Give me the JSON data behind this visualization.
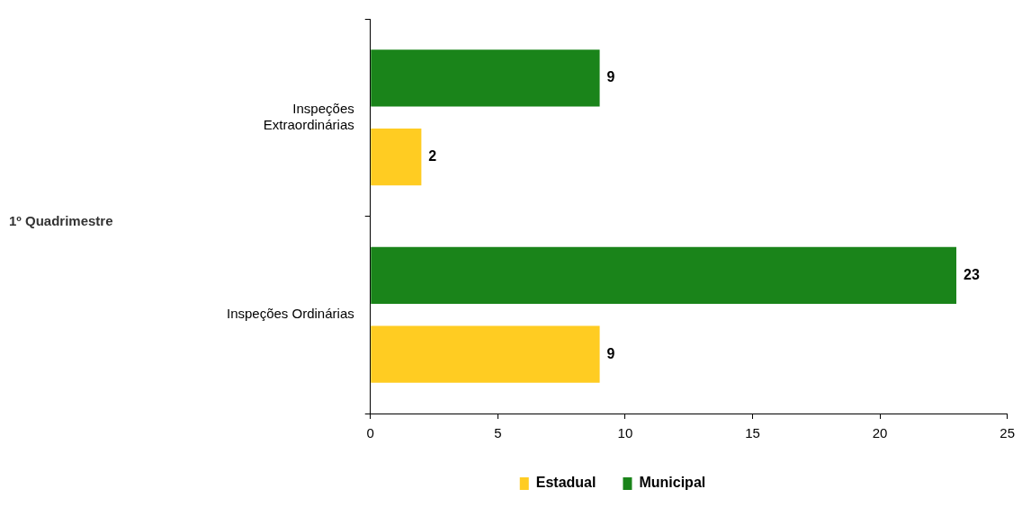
{
  "chart_data": {
    "type": "bar",
    "orientation": "horizontal",
    "annotations": [
      "1º Quadrimestre"
    ],
    "categories": [
      "Inspeções Extraordinárias",
      "Inspeções Ordinárias"
    ],
    "series": [
      {
        "name": "Estadual",
        "color": "#ffcc22",
        "values": [
          2,
          9
        ]
      },
      {
        "name": "Municipal",
        "color": "#1a841a",
        "values": [
          9,
          23
        ]
      }
    ],
    "xlim": [
      0,
      25
    ],
    "xticks": [
      0,
      5,
      10,
      15,
      20,
      25
    ],
    "grid": false,
    "legend": "bottom",
    "data_labels": true
  }
}
